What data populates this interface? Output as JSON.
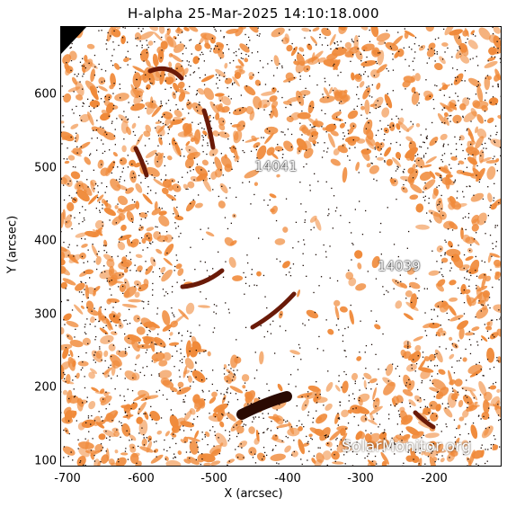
{
  "title": "H-alpha 25-Mar-2025 14:10:18.000",
  "x_axis": {
    "label": "X (arcsec)",
    "ticks": [
      "-700",
      "-600",
      "-500",
      "-400",
      "-300",
      "-200"
    ],
    "range": [
      -730,
      -130
    ]
  },
  "y_axis": {
    "label": "Y (arcsec)",
    "ticks": [
      "100",
      "200",
      "300",
      "400",
      "500",
      "600"
    ],
    "range": [
      95,
      695
    ]
  },
  "active_regions": [
    {
      "number": "14041",
      "x": -430,
      "y": 505
    },
    {
      "number": "14039",
      "x": -250,
      "y": 365
    }
  ],
  "watermark": "SolarMonitor.org",
  "colors": {
    "frame_background": "#ffffff",
    "chromosphere_orange": "#f08a3a",
    "filament_dark": "#6a1a08"
  }
}
